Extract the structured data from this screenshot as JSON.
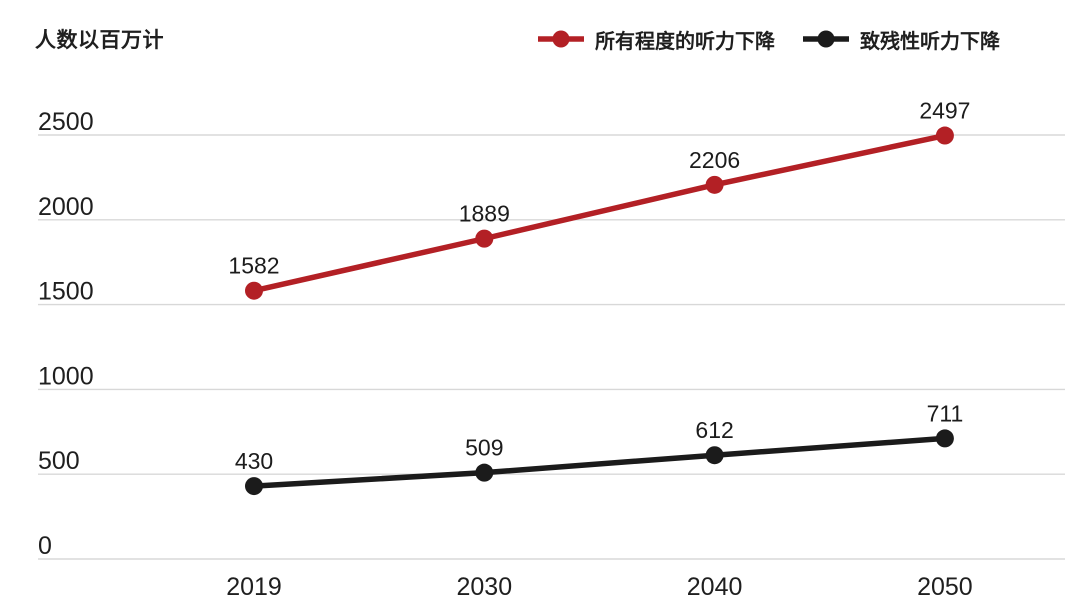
{
  "chart_data": {
    "type": "line",
    "ylabel": "人数以百万计",
    "categories": [
      "2019",
      "2030",
      "2040",
      "2050"
    ],
    "series": [
      {
        "name": "所有程度的听力下降",
        "values": [
          1582,
          1889,
          2206,
          2497
        ],
        "color": "#b32025"
      },
      {
        "name": "致残性听力下降",
        "values": [
          430,
          509,
          612,
          711
        ],
        "color": "#1b1b1b"
      }
    ],
    "yticks": [
      0,
      500,
      1000,
      1500,
      2000,
      2500
    ],
    "ylim": [
      0,
      2500
    ],
    "grid": true,
    "data_labels": true,
    "legend_position": "top-right",
    "colors": {
      "grid": "#d8d8d8",
      "text": "#1f1f1f",
      "background": "#ffffff"
    }
  }
}
